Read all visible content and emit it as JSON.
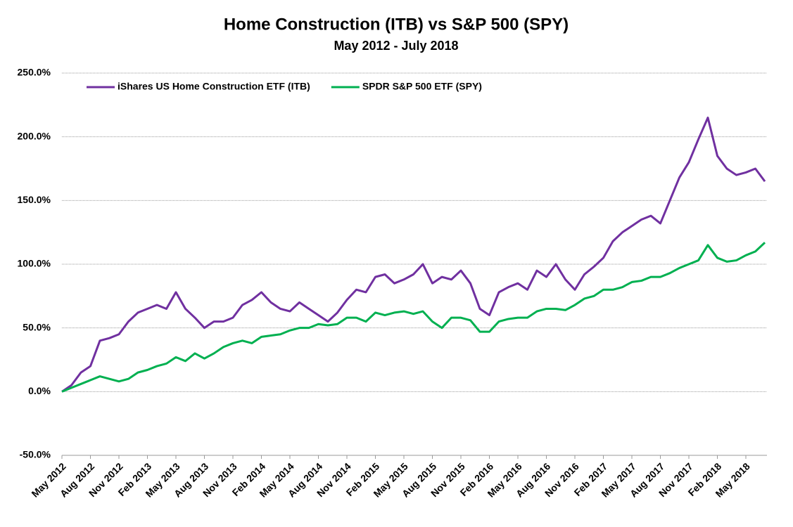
{
  "chart_data": {
    "type": "line",
    "title": "Home Construction (ITB) vs S&P 500 (SPY)",
    "subtitle": "May 2012 - July 2018",
    "categories": [
      "May 2012",
      null,
      null,
      "Aug 2012",
      null,
      null,
      "Nov 2012",
      null,
      null,
      "Feb 2013",
      null,
      null,
      "May 2013",
      null,
      null,
      "Aug 2013",
      null,
      null,
      "Nov 2013",
      null,
      null,
      "Feb 2014",
      null,
      null,
      "May 2014",
      null,
      null,
      "Aug 2014",
      null,
      null,
      "Nov 2014",
      null,
      null,
      "Feb 2015",
      null,
      null,
      "May 2015",
      null,
      null,
      "Aug 2015",
      null,
      null,
      "Nov 2015",
      null,
      null,
      "Feb 2016",
      null,
      null,
      "May 2016",
      null,
      null,
      "Aug 2016",
      null,
      null,
      "Nov 2016",
      null,
      null,
      "Feb 2017",
      null,
      null,
      "May 2017",
      null,
      null,
      "Aug 2017",
      null,
      null,
      "Nov 2017",
      null,
      null,
      "Feb 2018",
      null,
      null,
      "May 2018",
      null,
      null
    ],
    "series": [
      {
        "name": "iShares US Home Construction ETF (ITB)",
        "color": "#7030a0",
        "values": [
          0,
          5,
          15,
          20,
          40,
          42,
          45,
          55,
          62,
          65,
          68,
          65,
          78,
          65,
          58,
          50,
          55,
          55,
          58,
          68,
          72,
          78,
          70,
          65,
          63,
          70,
          65,
          60,
          55,
          62,
          72,
          80,
          78,
          90,
          92,
          85,
          88,
          92,
          100,
          85,
          90,
          88,
          95,
          85,
          65,
          60,
          78,
          82,
          85,
          80,
          95,
          90,
          100,
          88,
          80,
          92,
          98,
          105,
          118,
          125,
          130,
          135,
          138,
          132,
          150,
          168,
          180,
          198,
          215,
          185,
          175,
          170,
          172,
          175,
          165
        ]
      },
      {
        "name": "SPDR S&P 500 ETF (SPY)",
        "color": "#00b050",
        "values": [
          0,
          3,
          6,
          9,
          12,
          10,
          8,
          10,
          15,
          17,
          20,
          22,
          27,
          24,
          30,
          26,
          30,
          35,
          38,
          40,
          38,
          43,
          44,
          45,
          48,
          50,
          50,
          53,
          52,
          53,
          58,
          58,
          55,
          62,
          60,
          62,
          63,
          61,
          63,
          55,
          50,
          58,
          58,
          56,
          47,
          47,
          55,
          57,
          58,
          58,
          63,
          65,
          65,
          64,
          68,
          73,
          75,
          80,
          80,
          82,
          86,
          87,
          90,
          90,
          93,
          97,
          100,
          103,
          115,
          105,
          102,
          103,
          107,
          110,
          117
        ]
      }
    ],
    "ylim": [
      -50,
      250
    ],
    "yticks": [
      {
        "value": -50,
        "label": "-50.0%"
      },
      {
        "value": 0,
        "label": "0.0%"
      },
      {
        "value": 50,
        "label": "50.0%"
      },
      {
        "value": 100,
        "label": "100.0%"
      },
      {
        "value": 150,
        "label": "150.0%"
      },
      {
        "value": 200,
        "label": "200.0%"
      },
      {
        "value": 250,
        "label": "250.0%"
      }
    ],
    "grid": true,
    "legend": "top-left"
  }
}
